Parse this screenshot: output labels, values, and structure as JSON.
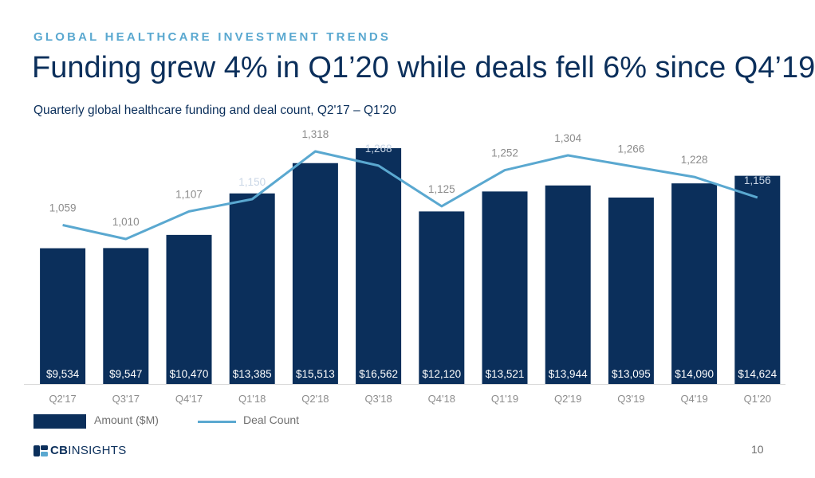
{
  "header": {
    "kicker": "GLOBAL HEALTHCARE INVESTMENT TRENDS",
    "title": "Funding grew 4% in Q1’20 while deals fell 6% since Q4’19",
    "subtitle": "Quarterly global healthcare funding and deal count, Q2'17 – Q1'20"
  },
  "chart_data": {
    "type": "bar",
    "categories": [
      "Q2'17",
      "Q3'17",
      "Q4'17",
      "Q1'18",
      "Q2'18",
      "Q3'18",
      "Q4'18",
      "Q1'19",
      "Q2'19",
      "Q3'19",
      "Q4'19",
      "Q1'20"
    ],
    "series": [
      {
        "name": "Amount ($M)",
        "type": "bar",
        "values": [
          9534,
          9547,
          10470,
          13385,
          15513,
          16562,
          12120,
          13521,
          13944,
          13095,
          14090,
          14624
        ],
        "labels": [
          "$9,534",
          "$9,547",
          "$10,470",
          "$13,385",
          "$15,513",
          "$16,562",
          "$12,120",
          "$13,521",
          "$13,944",
          "$13,095",
          "$14,090",
          "$14,624"
        ]
      },
      {
        "name": "Deal Count",
        "type": "line",
        "values": [
          1059,
          1010,
          1107,
          1150,
          1318,
          1268,
          1125,
          1252,
          1304,
          1266,
          1228,
          1156
        ],
        "labels": [
          "1,059",
          "1,010",
          "1,107",
          "1,150",
          "1,318",
          "1,268",
          "1,125",
          "1,252",
          "1,304",
          "1,266",
          "1,228",
          "1,156"
        ]
      }
    ],
    "grid": false,
    "legend_placement": "bottom-left",
    "colors": {
      "bars": "#0b2f5b",
      "line": "#5aa8d0",
      "bar_label": "#ffffff",
      "line_label": "#8c8c8c",
      "axis_label": "#8c8c8c"
    }
  },
  "legend": {
    "bar_label": "Amount ($M)",
    "line_label": "Deal Count"
  },
  "footer": {
    "logo_cb": "CB",
    "logo_insights": "INSIGHTS",
    "page_number": "10"
  }
}
